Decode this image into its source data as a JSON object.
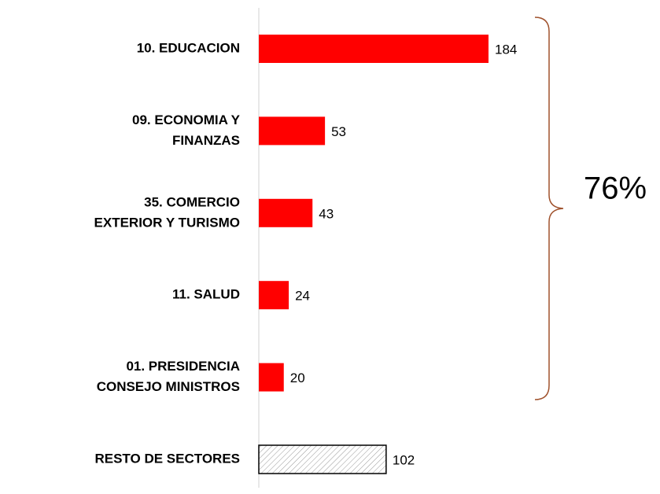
{
  "chart_data": {
    "type": "barh",
    "categories": [
      [
        "10. EDUCACION"
      ],
      [
        "09. ECONOMIA Y",
        "FINANZAS"
      ],
      [
        "35. COMERCIO",
        "EXTERIOR Y TURISMO"
      ],
      [
        "11. SALUD"
      ],
      [
        "01. PRESIDENCIA",
        "CONSEJO MINISTROS"
      ],
      [
        "RESTO DE SECTORES"
      ]
    ],
    "values": [
      184,
      53,
      43,
      24,
      20,
      102
    ],
    "colors": [
      "#ff0000",
      "#ff0000",
      "#ff0000",
      "#ff0000",
      "#ff0000",
      "#ffffff"
    ],
    "hatched": [
      false,
      false,
      false,
      false,
      false,
      true
    ],
    "annotation": "76%"
  }
}
